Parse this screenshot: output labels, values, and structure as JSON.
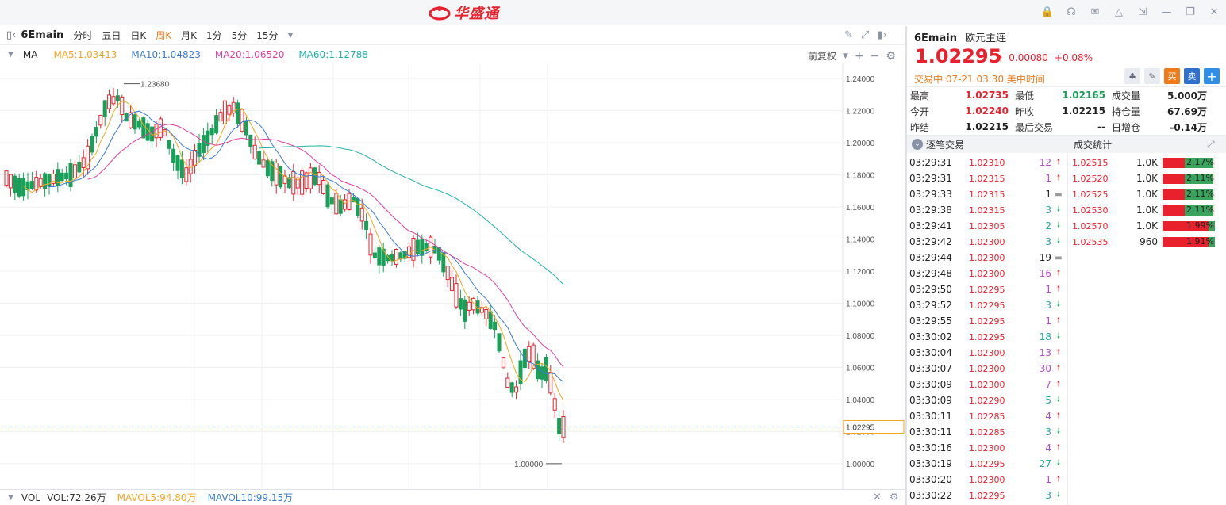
{
  "brand": {
    "name": "华盛通"
  },
  "window": {
    "icons": [
      "lock-icon",
      "headset-icon",
      "mail-icon",
      "shirt-icon",
      "shrink-icon",
      "minimize-icon",
      "restore-icon",
      "close-icon"
    ]
  },
  "toolbar": {
    "symbol": "6Emain",
    "periods": [
      "分时",
      "五日",
      "日K",
      "周K",
      "月K",
      "1分",
      "5分",
      "15分"
    ],
    "active": "周K"
  },
  "ma": {
    "label": "MA",
    "ma5": "MA5:1.03413",
    "ma10": "MA10:1.04823",
    "ma20": "MA20:1.06520",
    "ma60": "MA60:1.12788",
    "adjust": "前复权"
  },
  "vol": {
    "label": "VOL",
    "vol": "VOL:72.26万",
    "mavol5": "MAVOL5:94.80万",
    "mavol10": "MAVOL10:99.15万"
  },
  "chart_data": {
    "type": "candlestick",
    "y_ticks": [
      "1.24000",
      "1.22000",
      "1.20000",
      "1.18000",
      "1.16000",
      "1.14000",
      "1.12000",
      "1.10000",
      "1.08000",
      "1.06000",
      "1.04000",
      "1.02000",
      "1.00000"
    ],
    "ylim": [
      0.9965,
      1.2465
    ],
    "high_label": "1.23680",
    "low_label": "1.00000",
    "current_price_label": "1.02295",
    "colors": {
      "up": "#e8212d",
      "down": "#18a058",
      "ma5": "#f5a623",
      "ma10": "#3a7bd5",
      "ma20": "#e040a0",
      "ma60": "#20b2aa"
    }
  },
  "quote": {
    "symbol": "6Emain",
    "name": "欧元主连",
    "price": "1.02295",
    "change": "0.00080",
    "change_pct": "+0.08%",
    "status": "交易中 07-21 03:30 美中时间"
  },
  "actions": {
    "buy": "买",
    "sell": "卖",
    "add": "+"
  },
  "stats": [
    [
      {
        "l": "最高",
        "v": "1.02735",
        "c": "red"
      },
      {
        "l": "最低",
        "v": "1.02165",
        "c": "green"
      },
      {
        "l": "成交量",
        "v": "5.000万",
        "c": "dark"
      }
    ],
    [
      {
        "l": "今开",
        "v": "1.02240",
        "c": "red"
      },
      {
        "l": "昨收",
        "v": "1.02215",
        "c": "dark"
      },
      {
        "l": "持仓量",
        "v": "67.69万",
        "c": "dark"
      }
    ],
    [
      {
        "l": "昨结",
        "v": "1.02215",
        "c": "dark"
      },
      {
        "l": "最后交易",
        "v": "--",
        "c": "dark"
      },
      {
        "l": "日增仓",
        "v": "-0.14万",
        "c": "dark"
      }
    ]
  ],
  "sections": {
    "ticks": "逐笔交易",
    "dist": "成交统计"
  },
  "ticks": [
    [
      "03:29:31",
      "1.02310",
      "12",
      "up"
    ],
    [
      "03:29:31",
      "1.02315",
      "1",
      "up"
    ],
    [
      "03:29:33",
      "1.02315",
      "1",
      "flat"
    ],
    [
      "03:29:38",
      "1.02315",
      "3",
      "dn"
    ],
    [
      "03:29:41",
      "1.02305",
      "2",
      "dn"
    ],
    [
      "03:29:42",
      "1.02300",
      "3",
      "dn"
    ],
    [
      "03:29:44",
      "1.02300",
      "19",
      "flat"
    ],
    [
      "03:29:48",
      "1.02300",
      "16",
      "up"
    ],
    [
      "03:29:50",
      "1.02295",
      "1",
      "up"
    ],
    [
      "03:29:52",
      "1.02295",
      "3",
      "dn"
    ],
    [
      "03:29:55",
      "1.02295",
      "1",
      "up"
    ],
    [
      "03:30:02",
      "1.02295",
      "18",
      "dn"
    ],
    [
      "03:30:04",
      "1.02300",
      "13",
      "up"
    ],
    [
      "03:30:07",
      "1.02300",
      "30",
      "up"
    ],
    [
      "03:30:09",
      "1.02300",
      "7",
      "up"
    ],
    [
      "03:30:09",
      "1.02290",
      "5",
      "dn"
    ],
    [
      "03:30:11",
      "1.02285",
      "4",
      "up"
    ],
    [
      "03:30:11",
      "1.02285",
      "3",
      "dn"
    ],
    [
      "03:30:16",
      "1.02300",
      "4",
      "up"
    ],
    [
      "03:30:19",
      "1.02295",
      "27",
      "dn"
    ],
    [
      "03:30:20",
      "1.02300",
      "1",
      "up"
    ],
    [
      "03:30:22",
      "1.02295",
      "3",
      "dn"
    ]
  ],
  "dist": [
    {
      "price": "1.02515",
      "qty": "1.0K",
      "pct": "2.17%",
      "up": 0.42
    },
    {
      "price": "1.02520",
      "qty": "1.0K",
      "pct": "2.11%",
      "up": 0.42
    },
    {
      "price": "1.02525",
      "qty": "1.0K",
      "pct": "2.11%",
      "up": 0.42
    },
    {
      "price": "1.02530",
      "qty": "1.0K",
      "pct": "2.11%",
      "up": 0.42
    },
    {
      "price": "1.02570",
      "qty": "1.0K",
      "pct": "1.99%",
      "up": 0.88
    },
    {
      "price": "1.02535",
      "qty": "960",
      "pct": "1.91%",
      "up": 0.88
    }
  ]
}
